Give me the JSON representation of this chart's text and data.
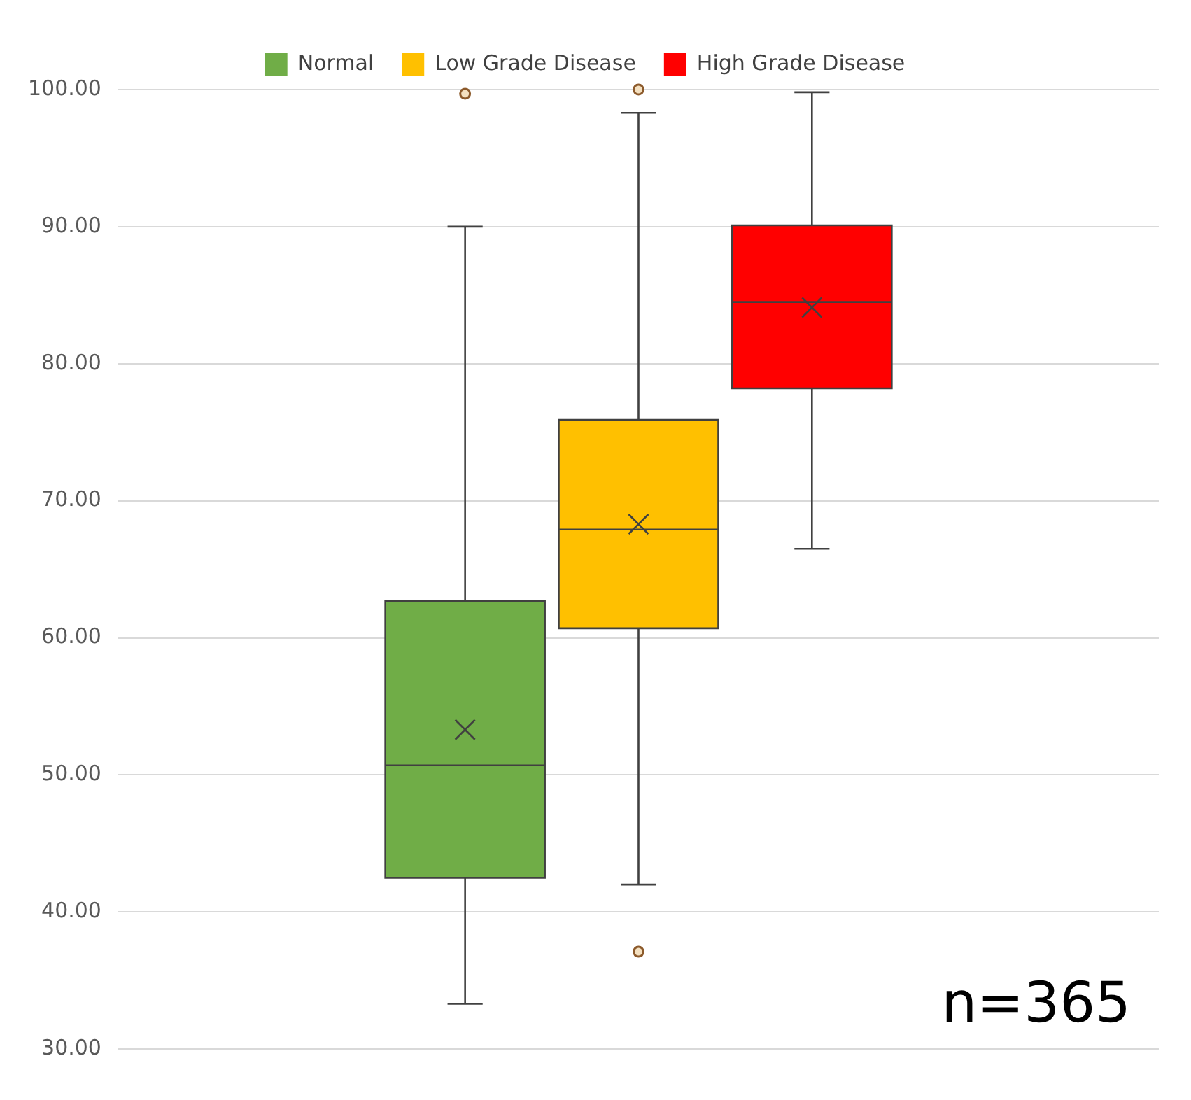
{
  "chart_data": {
    "type": "box",
    "categories": [
      null
    ],
    "series": [
      {
        "name": "Normal",
        "color": "#70ad47",
        "boxes": [
          {
            "low": 33.3,
            "q1": 42.5,
            "median": 50.7,
            "q3": 62.7,
            "high": 90.0,
            "mean": 53.3,
            "outliers": [
              99.7
            ]
          }
        ]
      },
      {
        "name": "Low Grade Disease",
        "color": "#ffc000",
        "boxes": [
          {
            "low": 42.0,
            "q1": 60.7,
            "median": 67.9,
            "q3": 75.9,
            "high": 98.3,
            "mean": 68.3,
            "outliers": [
              100.0,
              37.1
            ]
          }
        ]
      },
      {
        "name": "High Grade Disease",
        "color": "#ff0000",
        "boxes": [
          {
            "low": 66.5,
            "q1": 78.2,
            "median": 84.5,
            "q3": 90.1,
            "high": 99.8,
            "mean": 84.1
          }
        ]
      }
    ],
    "ylim": [
      30,
      100
    ],
    "yticks": [
      {
        "value": 30,
        "label": "30.00"
      },
      {
        "value": 40,
        "label": "40.00"
      },
      {
        "value": 50,
        "label": "50.00"
      },
      {
        "value": 60,
        "label": "60.00"
      },
      {
        "value": 70,
        "label": "70.00"
      },
      {
        "value": 80,
        "label": "80.00"
      },
      {
        "value": 90,
        "label": "90.00"
      },
      {
        "value": 100,
        "label": "100.00"
      }
    ],
    "grid": "y",
    "legend": "top",
    "marker": "cross",
    "annotations": [
      "n=365"
    ]
  }
}
